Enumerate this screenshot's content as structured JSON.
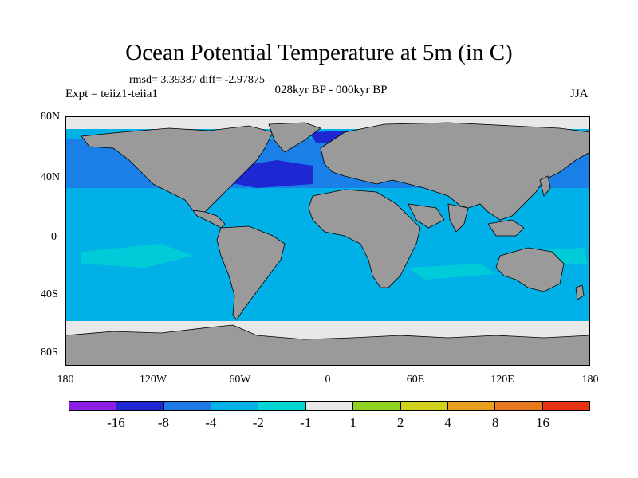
{
  "title": "Ocean Potential Temperature at 5m (in C)",
  "stats": "rmsd= 3.39387 diff= -2.97875",
  "experiment": "Expt = teiiz1-teiia1",
  "period": "028kyr BP - 000kyr BP",
  "season": "JJA",
  "axes": {
    "y_ticks": [
      {
        "label": "80N",
        "lat": 80
      },
      {
        "label": "40N",
        "lat": 40
      },
      {
        "label": "0",
        "lat": 0
      },
      {
        "label": "40S",
        "lat": -40
      },
      {
        "label": "80S",
        "lat": -80
      }
    ],
    "x_ticks": [
      {
        "label": "180",
        "lon": -180
      },
      {
        "label": "120W",
        "lon": -120
      },
      {
        "label": "60W",
        "lon": -60
      },
      {
        "label": "0",
        "lon": 0
      },
      {
        "label": "60E",
        "lon": 60
      },
      {
        "label": "120E",
        "lon": 120
      },
      {
        "label": "180",
        "lon": 180
      }
    ],
    "lon_range": [
      -180,
      180
    ],
    "lat_range": [
      -90,
      90
    ]
  },
  "colors": {
    "land": "#9a9a9a",
    "coast": "#000000",
    "ocean_main": "#00b0e6",
    "sea_ice": "#e8e8e8"
  },
  "colorbar": {
    "colors": [
      "#8c1ee6",
      "#1e28d2",
      "#1e78e6",
      "#00b0e6",
      "#00d7d2",
      "#e8e8e8",
      "#8cd21e",
      "#d2d21e",
      "#e6a01e",
      "#e6781e",
      "#e63214"
    ],
    "labels": [
      "-16",
      "-8",
      "-4",
      "-2",
      "-1",
      "1",
      "2",
      "4",
      "8",
      "16"
    ]
  }
}
